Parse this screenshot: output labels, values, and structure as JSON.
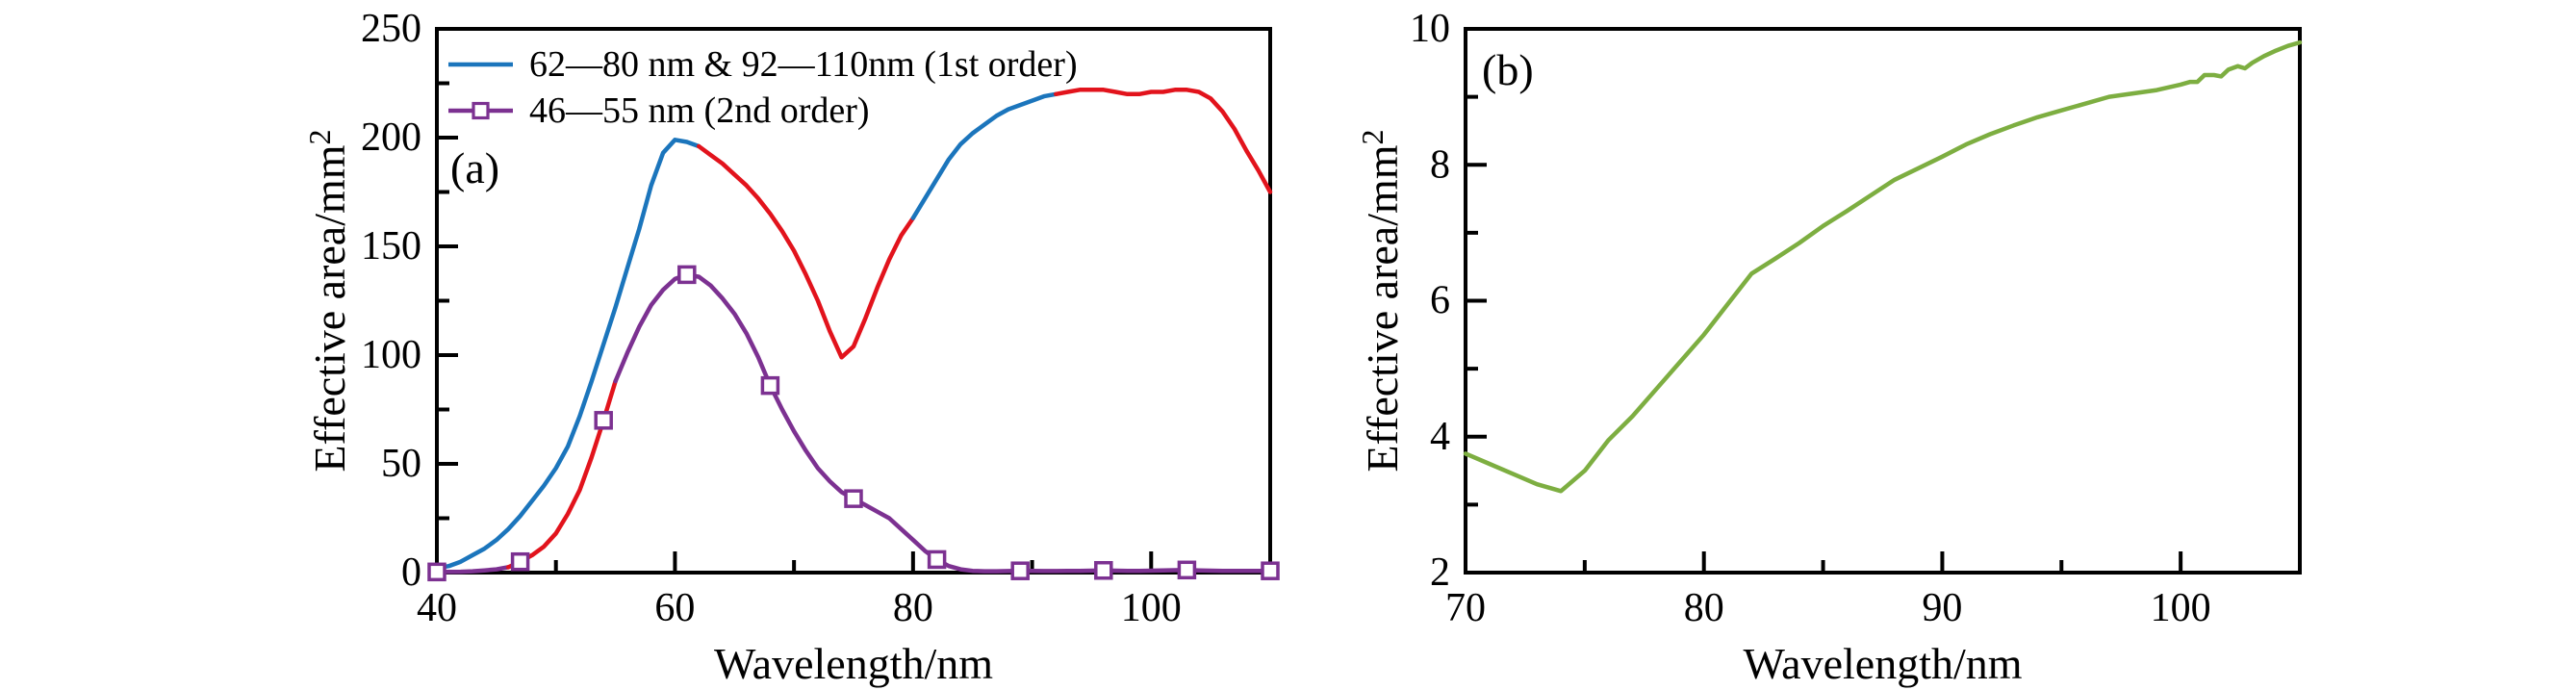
{
  "figure": {
    "background": "#ffffff",
    "text_color": "#000000"
  },
  "chart_data": [
    {
      "id": "a",
      "type": "line",
      "panel_label": "(a)",
      "xlabel": "Wavelength/nm",
      "ylabel": "Effective area/mm",
      "ylabel_superscript": "2",
      "xlim": [
        40,
        110
      ],
      "ylim": [
        0,
        250
      ],
      "x_major_ticks": [
        40,
        60,
        80,
        100
      ],
      "x_minor_ticks": [
        50,
        70,
        90
      ],
      "y_major_ticks": [
        0,
        50,
        100,
        150,
        200,
        250
      ],
      "y_minor_ticks": [
        25,
        75,
        125,
        175,
        225
      ],
      "grid": false,
      "legend_position": "top-left",
      "series": [
        {
          "name": "first-order",
          "label": "62—80 nm & 92—110nm (1st order)",
          "color": "#1b75bc",
          "highlight_color": "#e2131c",
          "highlight_ranges": [
            [
              62,
              80
            ],
            [
              92,
              110
            ]
          ],
          "marker": "none",
          "x": [
            40,
            41,
            42,
            43,
            44,
            45,
            46,
            47,
            48,
            49,
            50,
            51,
            52,
            53,
            54,
            55,
            56,
            57,
            58,
            59,
            60,
            61,
            62,
            63,
            64,
            65,
            66,
            67,
            68,
            69,
            70,
            71,
            72,
            73,
            74,
            75,
            76,
            77,
            78,
            79,
            80,
            81,
            82,
            83,
            84,
            85,
            86,
            87,
            88,
            89,
            90,
            91,
            92,
            93,
            94,
            95,
            96,
            97,
            98,
            99,
            100,
            101,
            102,
            103,
            104,
            105,
            106,
            107,
            108,
            109,
            110
          ],
          "y": [
            2,
            3,
            5,
            8,
            11,
            15,
            20,
            26,
            33,
            40,
            48,
            58,
            72,
            88,
            105,
            122,
            140,
            158,
            178,
            193,
            199,
            198,
            196,
            192,
            188,
            183,
            178,
            172,
            165,
            157,
            148,
            137,
            125,
            111,
            99,
            104,
            117,
            131,
            144,
            155,
            163,
            172,
            181,
            190,
            197,
            202,
            206,
            210,
            213,
            215,
            217,
            219,
            220,
            221,
            222,
            222,
            222,
            221,
            220,
            220,
            221,
            221,
            222,
            222,
            221,
            218,
            212,
            204,
            194,
            185,
            175
          ]
        },
        {
          "name": "second-order",
          "label": "46—55 nm (2nd order)",
          "color": "#7c3191",
          "highlight_color": "#e2131c",
          "highlight_ranges": [
            [
              46,
              55
            ]
          ],
          "marker": "square",
          "marker_x": [
            40,
            47,
            54,
            61,
            68,
            75,
            82,
            89,
            96,
            103,
            110
          ],
          "x": [
            40,
            41,
            42,
            43,
            44,
            45,
            46,
            47,
            48,
            49,
            50,
            51,
            52,
            53,
            54,
            55,
            56,
            57,
            58,
            59,
            60,
            61,
            62,
            63,
            64,
            65,
            66,
            67,
            68,
            69,
            70,
            71,
            72,
            73,
            74,
            75,
            76,
            77,
            78,
            79,
            80,
            81,
            82,
            83,
            84,
            85,
            86,
            87,
            88,
            89,
            90,
            91,
            92,
            93,
            94,
            95,
            96,
            97,
            98,
            99,
            100,
            101,
            102,
            103,
            104,
            105,
            106,
            107,
            108,
            109,
            110
          ],
          "y": [
            0.3,
            0.3,
            0.4,
            0.6,
            1,
            1.5,
            2.5,
            5,
            8,
            12,
            18,
            27,
            38,
            53,
            70,
            88,
            101,
            113,
            123,
            130,
            135,
            137,
            136,
            132,
            126,
            119,
            110,
            99,
            86,
            75,
            65,
            56,
            48,
            42,
            37,
            34,
            31,
            28,
            25,
            20,
            15,
            10,
            6,
            3,
            1.5,
            0.8,
            0.6,
            0.6,
            0.7,
            0.8,
            0.8,
            0.7,
            0.7,
            0.8,
            0.8,
            0.9,
            1,
            0.9,
            0.8,
            0.8,
            0.9,
            1,
            1.1,
            1.2,
            1,
            0.9,
            0.8,
            0.8,
            0.8,
            0.8,
            0.8
          ]
        }
      ]
    },
    {
      "id": "b",
      "type": "line",
      "panel_label": "(b)",
      "xlabel": "Wavelength/nm",
      "ylabel": "Effective area/mm",
      "ylabel_superscript": "2",
      "xlim": [
        70,
        105
      ],
      "ylim": [
        2,
        10
      ],
      "x_major_ticks": [
        70,
        80,
        90,
        100
      ],
      "x_minor_ticks": [
        75,
        85,
        95
      ],
      "y_major_ticks": [
        2,
        4,
        6,
        8,
        10
      ],
      "y_minor_ticks": [
        3,
        5,
        7,
        9
      ],
      "grid": false,
      "legend_position": "none",
      "series": [
        {
          "name": "effective-area-green",
          "label": "",
          "color": "#7dae41",
          "highlight_color": "#7dae41",
          "highlight_ranges": [],
          "marker": "none",
          "x": [
            70,
            71,
            72,
            73,
            74,
            75,
            76,
            77,
            78,
            79,
            80,
            81,
            82,
            83,
            84,
            85,
            86,
            87,
            88,
            89,
            90,
            91,
            92,
            93,
            94,
            95,
            96,
            97,
            98,
            99,
            100,
            100.4,
            100.7,
            101,
            101.4,
            101.7,
            102,
            102.4,
            102.7,
            103,
            103.5,
            104,
            104.5,
            105
          ],
          "y": [
            3.75,
            3.6,
            3.45,
            3.3,
            3.2,
            3.5,
            3.95,
            4.3,
            4.7,
            5.1,
            5.5,
            5.95,
            6.4,
            6.62,
            6.85,
            7.1,
            7.32,
            7.55,
            7.78,
            7.95,
            8.12,
            8.3,
            8.45,
            8.58,
            8.7,
            8.8,
            8.9,
            9.0,
            9.05,
            9.1,
            9.18,
            9.22,
            9.22,
            9.32,
            9.32,
            9.3,
            9.4,
            9.45,
            9.42,
            9.5,
            9.6,
            9.68,
            9.75,
            9.8
          ]
        }
      ]
    }
  ]
}
